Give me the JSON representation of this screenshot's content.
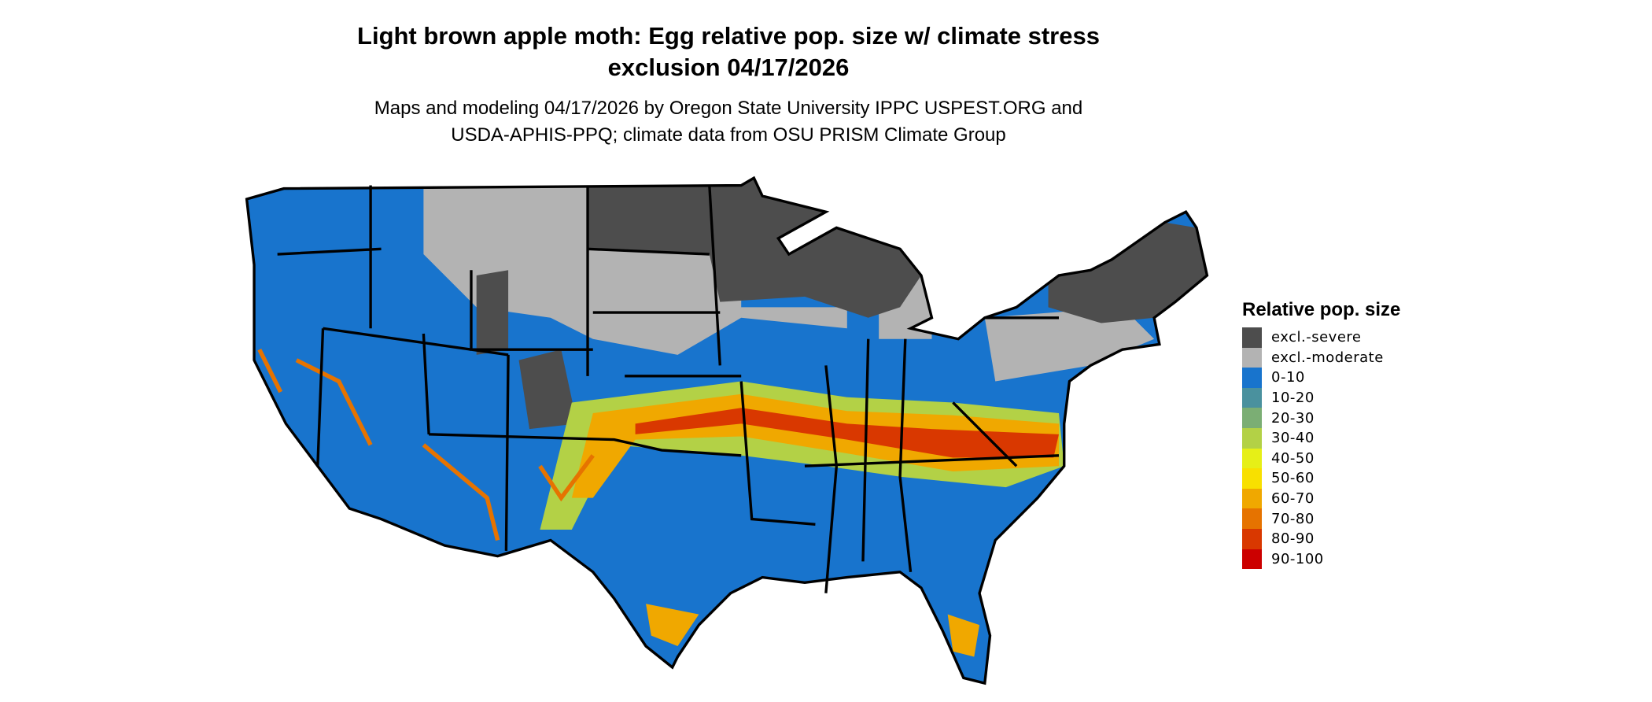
{
  "title_line1": "Light brown apple moth: Egg relative pop. size w/ climate stress",
  "title_line2": "exclusion 04/17/2026",
  "subtitle_line1": "Maps and modeling 04/17/2026 by Oregon State University IPPC USPEST.ORG and",
  "subtitle_line2": "USDA-APHIS-PPQ; climate data from OSU PRISM Climate Group",
  "legend": {
    "title": "Relative pop. size",
    "items": [
      {
        "label": "excl.-severe",
        "color": "#4d4d4d"
      },
      {
        "label": "excl.-moderate",
        "color": "#b3b3b3"
      },
      {
        "label": "0-10",
        "color": "#1874cd"
      },
      {
        "label": "10-20",
        "color": "#4a919e"
      },
      {
        "label": "20-30",
        "color": "#7bae74"
      },
      {
        "label": "30-40",
        "color": "#b3d146"
      },
      {
        "label": "40-50",
        "color": "#e6ef17"
      },
      {
        "label": "50-60",
        "color": "#f8e000"
      },
      {
        "label": "60-70",
        "color": "#f0a800"
      },
      {
        "label": "70-80",
        "color": "#e67300"
      },
      {
        "label": "80-90",
        "color": "#d93800"
      },
      {
        "label": "90-100",
        "color": "#cc0000"
      }
    ]
  },
  "chart_data": {
    "type": "heatmap",
    "region": "contiguous United States",
    "legend_placement": "right"
  }
}
